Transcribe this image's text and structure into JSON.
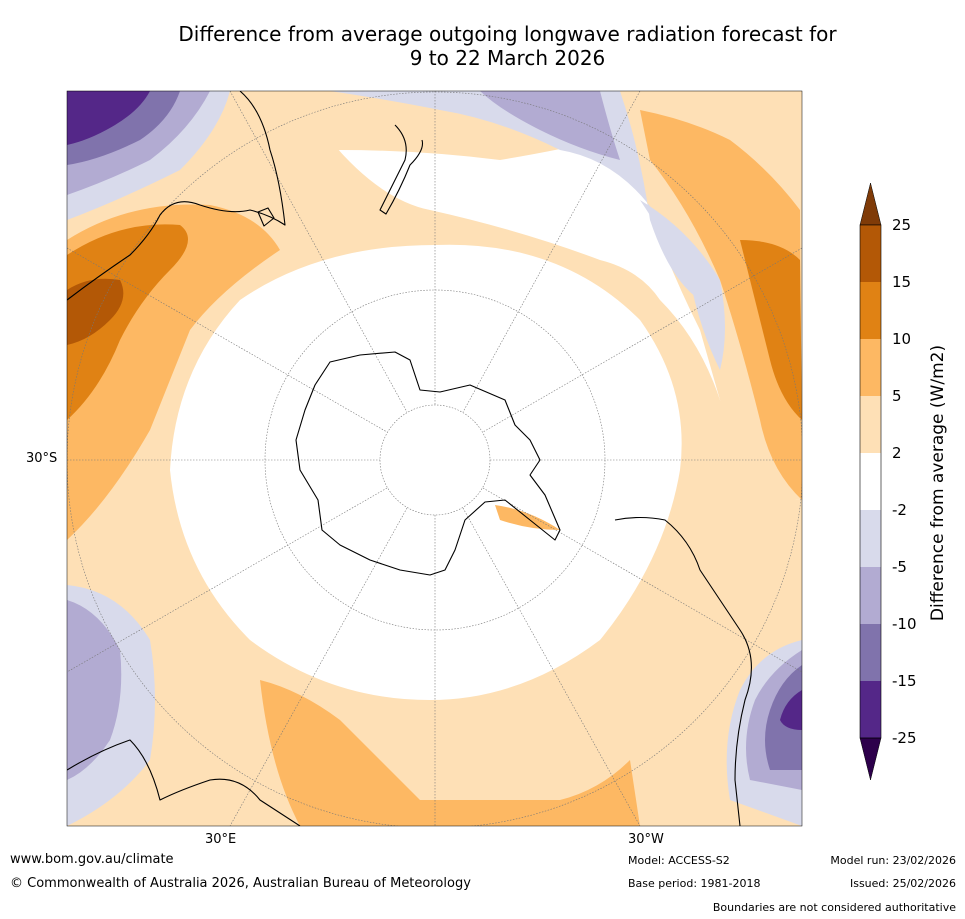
{
  "title": {
    "line1": "Difference from average outgoing longwave radiation forecast for",
    "line2": "9 to 22 March 2026"
  },
  "map": {
    "projection": "south-polar-stereographic",
    "graticule": {
      "label_30S": "30°S",
      "label_30E": "30°E",
      "label_30W": "30°W"
    }
  },
  "colorbar": {
    "label": "Difference from average (W/m2)",
    "ticks": [
      "25",
      "15",
      "10",
      "5",
      "2",
      "-2",
      "-5",
      "-10",
      "-15",
      "-25"
    ],
    "colors": {
      "over": "#7f3b08",
      "c15_25": "#b35806",
      "c10_15": "#e08214",
      "c5_10": "#fdb863",
      "c2_5": "#fee0b6",
      "neutral": "#ffffff",
      "m2_m5": "#d8daeb",
      "m5_m10": "#b2abd2",
      "m10_m15": "#8073ac",
      "m15_m25": "#542788",
      "under": "#2d004b"
    }
  },
  "footer": {
    "website": "www.bom.gov.au/climate",
    "copyright": "© Commonwealth of Australia 2026, Australian Bureau of Meteorology",
    "model": "Model: ACCESS-S2",
    "base_period": "Base period: 1981-2018",
    "model_run": "Model run: 23/02/2026",
    "issued": "Issued: 25/02/2026",
    "disclaimer": "Boundaries are not considered authoritative"
  }
}
